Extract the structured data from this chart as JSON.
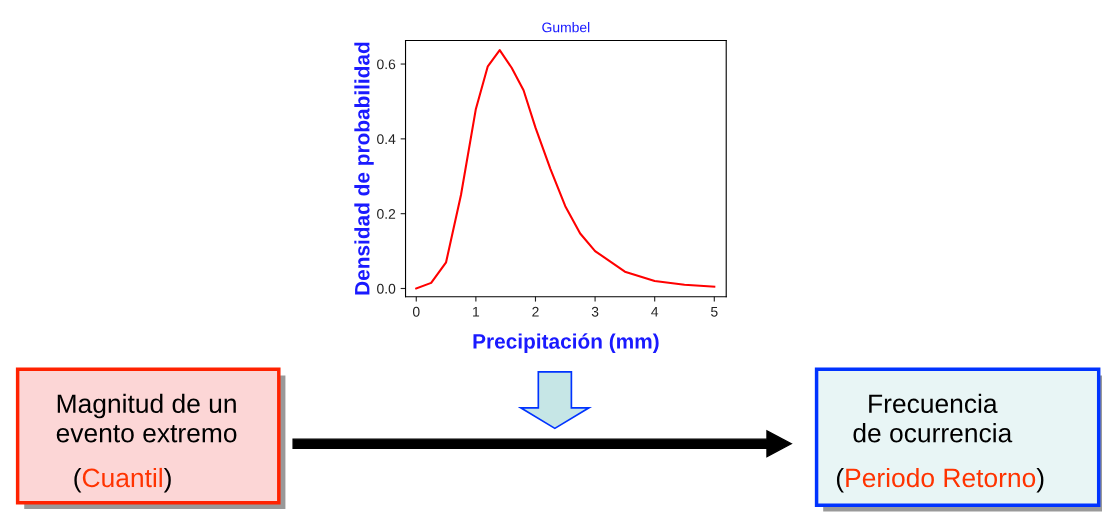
{
  "chart_data": {
    "type": "line",
    "title": "Gumbel",
    "xlabel": "Precipitación (mm)",
    "ylabel": "Densidad de probabilidad",
    "x": [
      0,
      0.25,
      0.5,
      0.75,
      1.0,
      1.2,
      1.4,
      1.6,
      1.8,
      2.0,
      2.25,
      2.5,
      2.75,
      3.0,
      3.5,
      4.0,
      4.5,
      5.0
    ],
    "series": [
      {
        "color": "#ff0000",
        "values": [
          0.0,
          0.015,
          0.07,
          0.25,
          0.48,
          0.594,
          0.637,
          0.59,
          0.53,
          0.43,
          0.32,
          0.22,
          0.147,
          0.1,
          0.045,
          0.02,
          0.01,
          0.005
        ]
      }
    ],
    "xlim": [
      -0.18,
      5.2
    ],
    "ylim": [
      -0.022,
      0.663
    ],
    "xticks": [
      0,
      1,
      2,
      3,
      4,
      5
    ],
    "yticks": [
      {
        "value": 0.0,
        "label": "0.0"
      },
      0.2,
      0.4,
      0.6
    ],
    "grid": false,
    "legend": false,
    "marker": "none",
    "line_style": "solid",
    "annotations": [
      "Magnitud de un\nevento extremo",
      "(",
      "Cuantil",
      ")",
      "Frecuencia\nde ocurrencia",
      "(",
      "Periodo Retorno",
      ")"
    ]
  }
}
